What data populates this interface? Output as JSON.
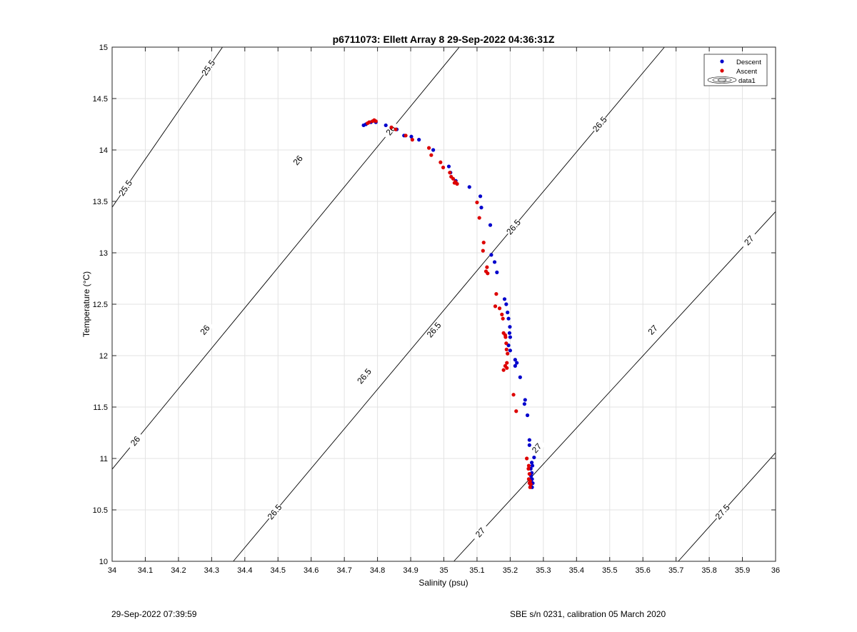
{
  "figure": {
    "footer_left": "29-Sep-2022 07:39:59",
    "footer_right": "SBE s/n 0231, calibration 05 March 2020"
  },
  "chart_data": {
    "type": "scatter",
    "title": "p6711073: Ellett Array 8 29-Sep-2022 04:36:31Z",
    "xlabel": "Salinity (psu)",
    "ylabel": "Temperature (°C)",
    "xlim": [
      34,
      36
    ],
    "ylim": [
      10,
      15
    ],
    "xticks": [
      "34",
      "34.1",
      "34.2",
      "34.3",
      "34.4",
      "34.5",
      "34.6",
      "34.7",
      "34.8",
      "34.9",
      "35",
      "35.1",
      "35.2",
      "35.3",
      "35.4",
      "35.5",
      "35.6",
      "35.7",
      "35.8",
      "35.9",
      "36"
    ],
    "yticks": [
      "10",
      "10.5",
      "11",
      "11.5",
      "12",
      "12.5",
      "13",
      "13.5",
      "14",
      "14.5",
      "15"
    ],
    "grid": true,
    "legend_position": "top-right",
    "legend": [
      "Descent",
      "Ascent",
      "data1"
    ],
    "colors": {
      "descent": "#0000cc",
      "ascent": "#dd0000",
      "contour": "#000000",
      "grid": "#e3e3e3"
    },
    "series": [
      {
        "name": "Descent",
        "points": [
          [
            34.758,
            14.24
          ],
          [
            34.765,
            14.25
          ],
          [
            34.78,
            14.27
          ],
          [
            34.795,
            14.27
          ],
          [
            34.825,
            14.24
          ],
          [
            34.858,
            14.2
          ],
          [
            34.88,
            14.14
          ],
          [
            34.902,
            14.13
          ],
          [
            34.925,
            14.1
          ],
          [
            34.968,
            14.0
          ],
          [
            35.015,
            13.84
          ],
          [
            35.02,
            13.78
          ],
          [
            35.036,
            13.7
          ],
          [
            35.077,
            13.64
          ],
          [
            35.11,
            13.55
          ],
          [
            35.113,
            13.44
          ],
          [
            35.14,
            13.27
          ],
          [
            35.143,
            12.98
          ],
          [
            35.153,
            12.91
          ],
          [
            35.16,
            12.81
          ],
          [
            35.183,
            12.55
          ],
          [
            35.188,
            12.5
          ],
          [
            35.192,
            12.42
          ],
          [
            35.195,
            12.36
          ],
          [
            35.199,
            12.28
          ],
          [
            35.198,
            12.22
          ],
          [
            35.2,
            12.18
          ],
          [
            35.195,
            12.1
          ],
          [
            35.2,
            12.05
          ],
          [
            35.215,
            11.96
          ],
          [
            35.22,
            11.93
          ],
          [
            35.215,
            11.9
          ],
          [
            35.23,
            11.79
          ],
          [
            35.245,
            11.57
          ],
          [
            35.243,
            11.53
          ],
          [
            35.252,
            11.42
          ],
          [
            35.258,
            11.18
          ],
          [
            35.258,
            11.13
          ],
          [
            35.272,
            11.01
          ],
          [
            35.265,
            10.96
          ],
          [
            35.267,
            10.93
          ],
          [
            35.262,
            10.9
          ],
          [
            35.265,
            10.86
          ],
          [
            35.263,
            10.83
          ],
          [
            35.266,
            10.8
          ],
          [
            35.264,
            10.77
          ],
          [
            35.268,
            10.76
          ],
          [
            35.262,
            10.74
          ],
          [
            35.266,
            10.72
          ]
        ]
      },
      {
        "name": "Ascent",
        "points": [
          [
            34.77,
            14.26
          ],
          [
            34.775,
            14.27
          ],
          [
            34.785,
            14.28
          ],
          [
            34.79,
            14.29
          ],
          [
            34.795,
            14.28
          ],
          [
            34.842,
            14.22
          ],
          [
            34.855,
            14.2
          ],
          [
            34.885,
            14.14
          ],
          [
            34.905,
            14.1
          ],
          [
            34.955,
            14.02
          ],
          [
            34.962,
            13.95
          ],
          [
            34.99,
            13.88
          ],
          [
            34.998,
            13.83
          ],
          [
            35.018,
            13.78
          ],
          [
            35.022,
            13.74
          ],
          [
            35.028,
            13.72
          ],
          [
            35.035,
            13.69
          ],
          [
            35.032,
            13.68
          ],
          [
            35.04,
            13.67
          ],
          [
            35.1,
            13.49
          ],
          [
            35.107,
            13.34
          ],
          [
            35.12,
            13.1
          ],
          [
            35.118,
            13.02
          ],
          [
            35.13,
            12.86
          ],
          [
            35.127,
            12.82
          ],
          [
            35.132,
            12.8
          ],
          [
            35.158,
            12.6
          ],
          [
            35.155,
            12.48
          ],
          [
            35.168,
            12.46
          ],
          [
            35.175,
            12.4
          ],
          [
            35.178,
            12.36
          ],
          [
            35.18,
            12.22
          ],
          [
            35.185,
            12.2
          ],
          [
            35.186,
            12.18
          ],
          [
            35.188,
            12.12
          ],
          [
            35.189,
            12.06
          ],
          [
            35.192,
            12.02
          ],
          [
            35.19,
            11.93
          ],
          [
            35.185,
            11.9
          ],
          [
            35.19,
            11.88
          ],
          [
            35.18,
            11.86
          ],
          [
            35.21,
            11.62
          ],
          [
            35.218,
            11.46
          ],
          [
            35.25,
            11.0
          ],
          [
            35.256,
            10.93
          ],
          [
            35.255,
            10.9
          ],
          [
            35.258,
            10.85
          ],
          [
            35.256,
            10.8
          ],
          [
            35.26,
            10.78
          ],
          [
            35.258,
            10.76
          ],
          [
            35.262,
            10.75
          ],
          [
            35.26,
            10.72
          ]
        ]
      }
    ],
    "contours": [
      {
        "level": "25.5",
        "labels": [
          [
            34.04,
            13.63
          ],
          [
            34.29,
            14.8
          ]
        ]
      },
      {
        "level": "26",
        "labels": [
          [
            34.07,
            11.17
          ],
          [
            34.28,
            12.25
          ],
          [
            34.56,
            13.9
          ],
          [
            34.84,
            14.19
          ]
        ]
      },
      {
        "level": "26.5",
        "labels": [
          [
            34.49,
            10.48
          ],
          [
            34.76,
            11.8
          ],
          [
            34.97,
            12.25
          ],
          [
            35.21,
            13.25
          ],
          [
            35.47,
            14.25
          ]
        ]
      },
      {
        "level": "27",
        "labels": [
          [
            35.11,
            10.28
          ],
          [
            35.28,
            11.1
          ],
          [
            35.63,
            12.25
          ],
          [
            35.92,
            13.12
          ]
        ]
      },
      {
        "level": "27.5",
        "labels": [
          [
            35.84,
            10.48
          ]
        ]
      }
    ]
  }
}
